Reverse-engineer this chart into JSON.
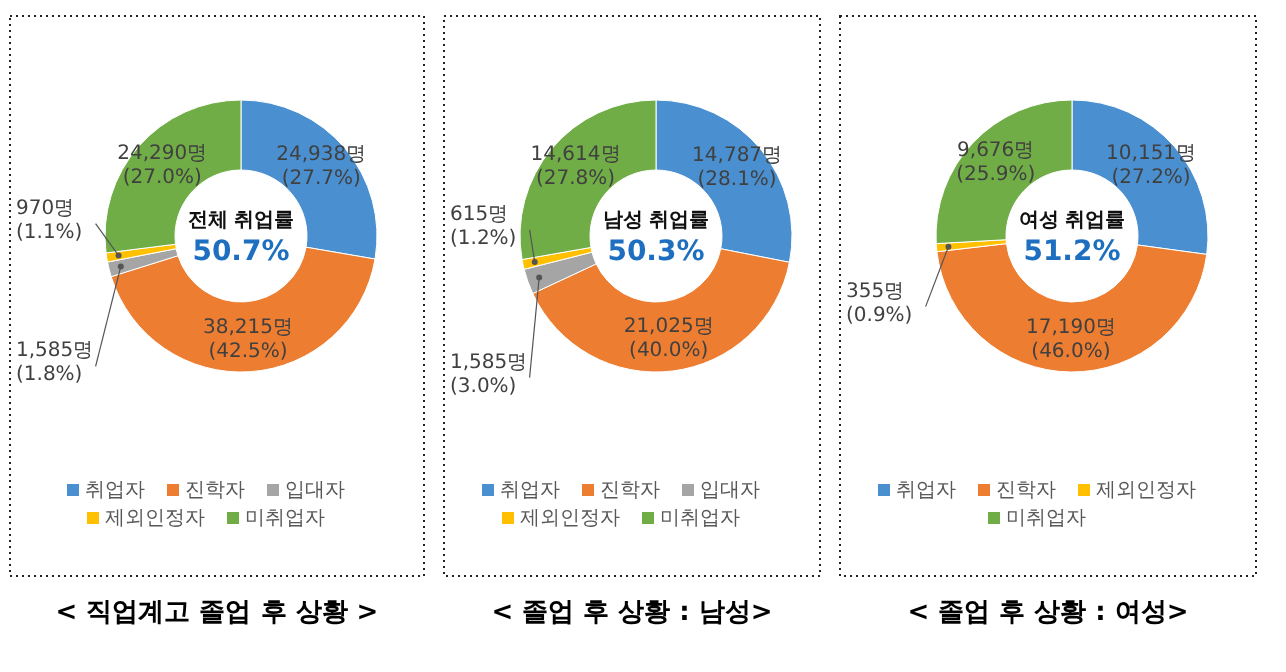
{
  "chart_data": [
    {
      "type": "donut",
      "title": "< 직업계고 졸업 후 상황 >",
      "categories": [
        "취업자",
        "진학자",
        "입대자",
        "제외인정자",
        "미취업자"
      ],
      "values": [
        24938,
        38215,
        1585,
        970,
        24290
      ],
      "colors": [
        "#4a8fd0",
        "#ed7d31",
        "#a5a5a5",
        "#ffc000",
        "#70ad47"
      ],
      "value_labels": [
        "24,938명\n(27.7%)",
        "38,215명\n(42.5%)",
        "1,585명\n(1.8%)",
        "970명\n(1.1%)",
        "24,290명\n(27.0%)"
      ],
      "annotations": [
        "전체 취업률",
        "50.7%"
      ],
      "legend": "bottom"
    },
    {
      "type": "donut",
      "title": "< 졸업 후 상황 : 남성>",
      "categories": [
        "취업자",
        "진학자",
        "입대자",
        "제외인정자",
        "미취업자"
      ],
      "values": [
        14787,
        21025,
        1585,
        615,
        14614
      ],
      "colors": [
        "#4a8fd0",
        "#ed7d31",
        "#a5a5a5",
        "#ffc000",
        "#70ad47"
      ],
      "value_labels": [
        "14,787명\n(28.1%)",
        "21,025명\n(40.0%)",
        "1,585명\n(3.0%)",
        "615명\n(1.2%)",
        "14,614명\n(27.8%)"
      ],
      "annotations": [
        "남성 취업률",
        "50.3%"
      ],
      "legend": "bottom"
    },
    {
      "type": "donut",
      "title": "< 졸업 후 상황 : 여성>",
      "categories": [
        "취업자",
        "진학자",
        "제외인정자",
        "미취업자"
      ],
      "values": [
        10151,
        17190,
        355,
        9676
      ],
      "colors": [
        "#4a8fd0",
        "#ed7d31",
        "#ffc000",
        "#70ad47"
      ],
      "value_labels": [
        "10,151명\n(27.2%)",
        "17,190명\n(46.0%)",
        "355명\n(0.9%)",
        "9,676명\n(25.9%)"
      ],
      "annotations": [
        "여성 취업률",
        "51.2%"
      ],
      "legend": "bottom"
    }
  ]
}
